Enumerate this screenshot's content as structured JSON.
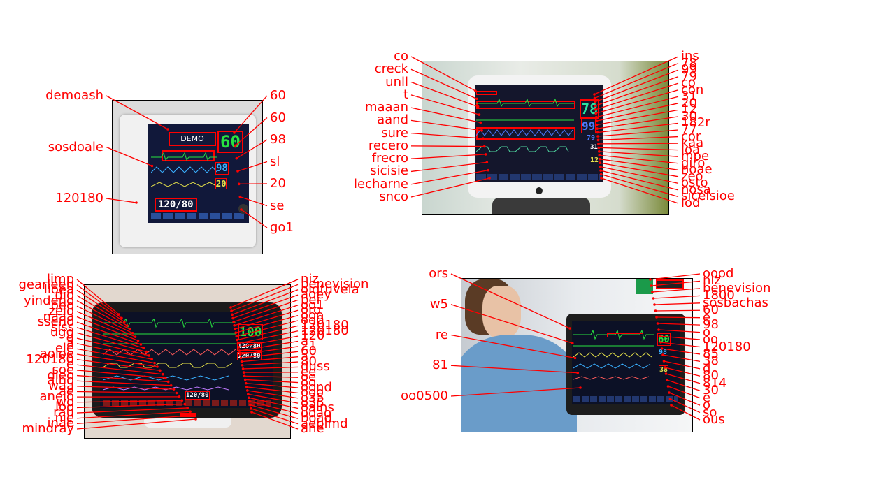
{
  "panels": [
    {
      "left_labels": [
        "demoash",
        "sosdoale",
        "120180"
      ],
      "right_labels": [
        "60",
        "60",
        "98",
        "sl",
        "20",
        "se",
        "go1"
      ],
      "screen": {
        "demo_text": "DEMO",
        "hr": "60",
        "spo2": "98",
        "resp": "20",
        "nibp": "120/80"
      }
    },
    {
      "left_labels": [
        "co",
        "creck",
        "unll",
        "t",
        "maaan",
        "aand",
        "sure",
        "recero",
        "frecro",
        "sicisie",
        "lecharne",
        "snco"
      ],
      "right_labels": [
        "ins",
        "78",
        "99",
        "79",
        "co",
        "con",
        "31",
        "20",
        "12",
        "30",
        "182r",
        "77",
        "cor",
        "kaa",
        "loa",
        "mpe",
        "giro",
        "hoae",
        "zeo",
        "osto",
        "nosa",
        "sicelsioe",
        "lod"
      ],
      "screen": {
        "hr": "78",
        "spo2": "99",
        "pulse": "79",
        "a": "31",
        "b": "12"
      }
    },
    {
      "left_labels": [
        "limp",
        "gearleen",
        "lioea",
        "dio",
        "yindeno",
        "oeo",
        "zelo",
        "naaa",
        "sseno",
        "siss",
        "ugg",
        "g",
        "a",
        "ele",
        "aoloe",
        "120180",
        "e",
        "soe",
        "dieo",
        "alno",
        "waa",
        "ae",
        "aneio",
        "wo",
        "loo",
        "rau",
        "nie",
        "inae",
        "mindray"
      ],
      "right_labels": [
        "niz",
        "benevision",
        "oiqtuvela",
        "aoey",
        "bei",
        "oo1",
        "oro",
        "ooo",
        "oo0",
        "120180",
        "120180",
        "120",
        "a",
        "21",
        "60",
        "a",
        "80",
        "duss",
        "ee",
        "oe",
        "oo",
        "oond",
        "ooo",
        "o35",
        "o35",
        "oalns",
        "ooao",
        "boad",
        "aeblmd",
        "ane"
      ],
      "screen": {
        "hr": "100",
        "nibp_a": "120/80",
        "nibp_b": "120/80",
        "bottom": "120/80"
      }
    },
    {
      "left_labels": [
        "ors",
        "w5",
        "re",
        "81",
        "oo0500"
      ],
      "right_labels": [
        "oood",
        "niz",
        "benevision",
        "1800",
        "sosbachas",
        "60",
        "e",
        "98",
        "o",
        "oo",
        "120180",
        "85",
        "38",
        "d",
        "80",
        "814",
        "30",
        "e",
        "o",
        "so",
        "ous"
      ],
      "screen": {
        "hr": "60",
        "spo2": "98",
        "val": "38"
      }
    }
  ]
}
